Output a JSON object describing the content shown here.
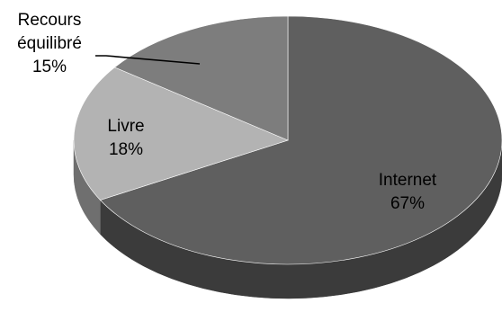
{
  "chart_data": {
    "type": "pie",
    "style": "3d-tilted",
    "title": "",
    "slices": [
      {
        "name": "Internet",
        "value": 67,
        "value_label": "67%",
        "color": "#5f5f5f"
      },
      {
        "name": "Livre",
        "value": 18,
        "value_label": "18%",
        "color": "#b3b3b3"
      },
      {
        "name": "Recours équilibré",
        "name_lines": [
          "Recours",
          "équilibré"
        ],
        "value": 15,
        "value_label": "15%",
        "color": "#7d7d7d"
      }
    ],
    "legend": "none",
    "data_labels": "category-and-percent"
  }
}
